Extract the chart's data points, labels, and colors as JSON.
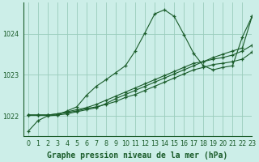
{
  "bg_color": "#cceee8",
  "grid_color": "#99ccbb",
  "line_color": "#1a5c2a",
  "title": "Graphe pression niveau de la mer (hPa)",
  "xlim": [
    -0.5,
    23
  ],
  "ylim": [
    1021.5,
    1024.75
  ],
  "yticks": [
    1022,
    1023,
    1024
  ],
  "xticks": [
    0,
    1,
    2,
    3,
    4,
    5,
    6,
    7,
    8,
    9,
    10,
    11,
    12,
    13,
    14,
    15,
    16,
    17,
    18,
    19,
    20,
    21,
    22,
    23
  ],
  "series1": [
    1021.62,
    1021.88,
    1022.0,
    1022.02,
    1022.12,
    1022.22,
    1022.5,
    1022.72,
    1022.88,
    1023.05,
    1023.22,
    1023.58,
    1024.02,
    1024.48,
    1024.58,
    1024.42,
    1023.98,
    1023.52,
    1023.22,
    1023.12,
    1023.18,
    1023.22,
    1023.92,
    1024.42
  ],
  "series2": [
    1022.02,
    1022.02,
    1022.02,
    1022.05,
    1022.08,
    1022.12,
    1022.18,
    1022.22,
    1022.28,
    1022.35,
    1022.45,
    1022.52,
    1022.62,
    1022.72,
    1022.82,
    1022.92,
    1023.02,
    1023.12,
    1023.18,
    1023.25,
    1023.28,
    1023.32,
    1023.38,
    1023.55
  ],
  "series3": [
    1022.02,
    1022.02,
    1022.02,
    1022.05,
    1022.1,
    1022.15,
    1022.2,
    1022.28,
    1022.38,
    1022.48,
    1022.58,
    1022.68,
    1022.78,
    1022.88,
    1022.98,
    1023.08,
    1023.18,
    1023.28,
    1023.32,
    1023.38,
    1023.42,
    1023.48,
    1023.58,
    1023.72
  ],
  "series4": [
    1022.02,
    1022.02,
    1022.02,
    1022.02,
    1022.05,
    1022.1,
    1022.15,
    1022.2,
    1022.3,
    1022.42,
    1022.52,
    1022.62,
    1022.72,
    1022.82,
    1022.92,
    1023.02,
    1023.12,
    1023.22,
    1023.32,
    1023.42,
    1023.5,
    1023.58,
    1023.65,
    1024.42
  ],
  "title_fontsize": 7.0,
  "tick_fontsize": 5.8
}
